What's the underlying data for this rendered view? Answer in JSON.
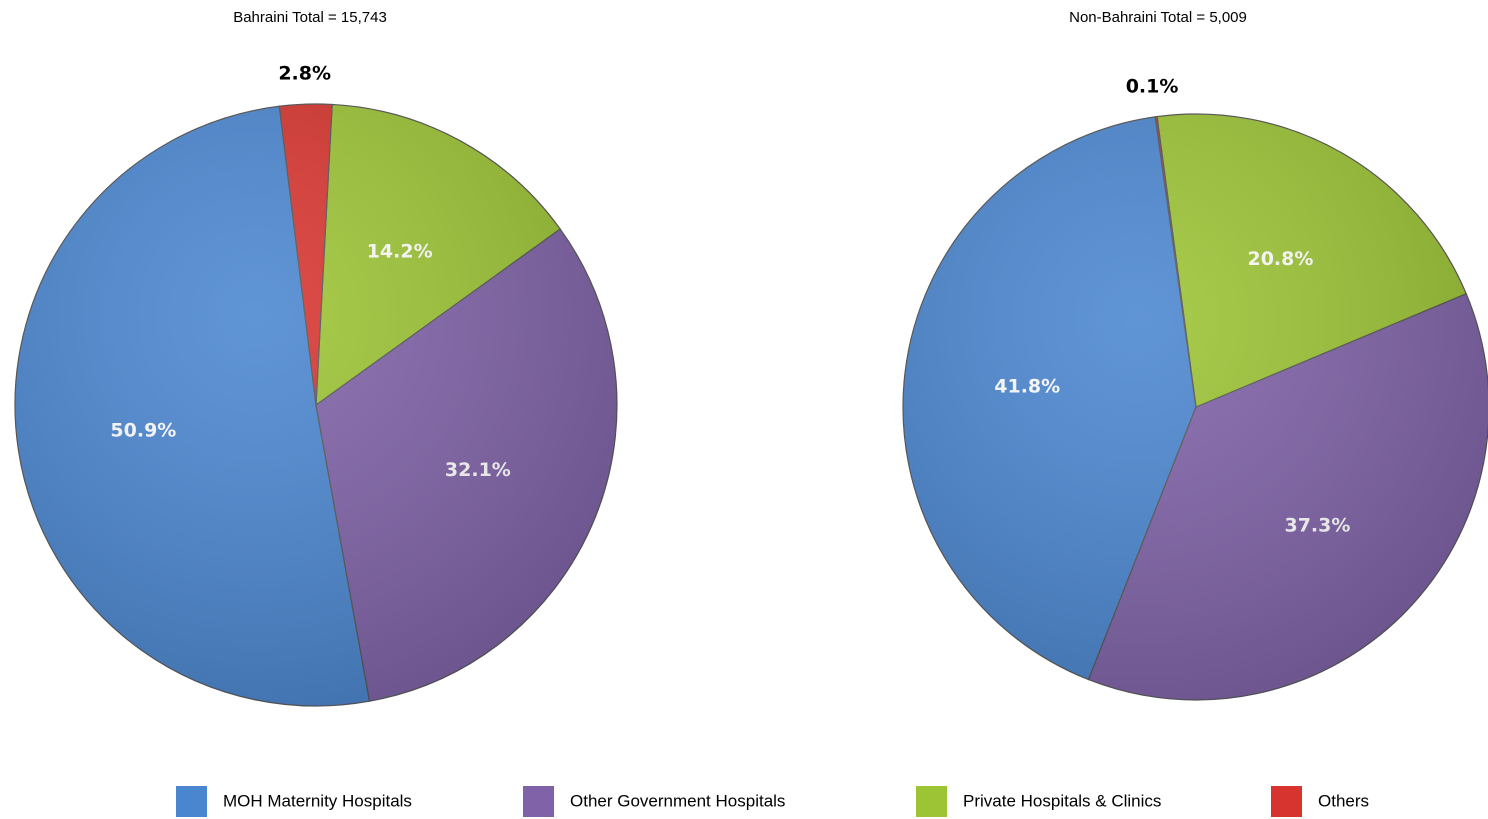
{
  "chart_data": [
    {
      "type": "pie",
      "title": "Bahraini Total = 15,743",
      "categories": [
        "MOH Maternity Hospitals",
        "Other Government Hospitals",
        "Private Hospitals & Clinics",
        "Others"
      ],
      "values": [
        50.9,
        32.1,
        14.2,
        2.8
      ],
      "value_labels": [
        "50.9%",
        "32.1%",
        "14.2%",
        "2.8%"
      ],
      "colors": [
        "#4a86d0",
        "#7f62a8",
        "#9cc434",
        "#d8342f"
      ]
    },
    {
      "type": "pie",
      "title": "Non-Bahraini Total = 5,009",
      "categories": [
        "MOH Maternity Hospitals",
        "Other Government Hospitals",
        "Private Hospitals & Clinics",
        "Others"
      ],
      "values": [
        41.8,
        37.3,
        20.8,
        0.1
      ],
      "value_labels": [
        "41.8%",
        "37.3%",
        "20.8%",
        "0.1%"
      ],
      "colors": [
        "#4a86d0",
        "#7f62a8",
        "#9cc434",
        "#d8342f"
      ]
    }
  ]
}
